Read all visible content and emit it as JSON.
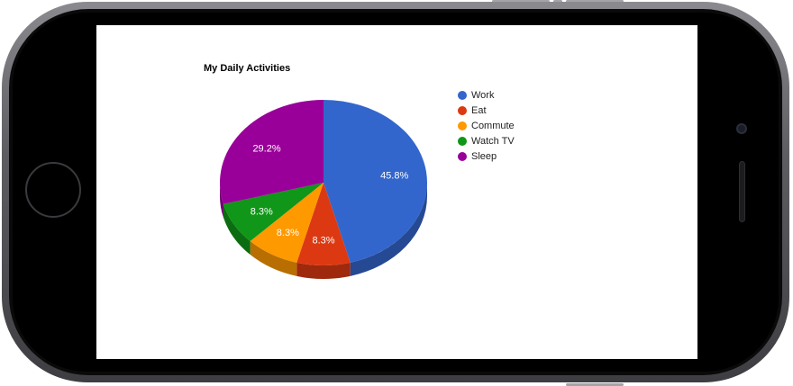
{
  "chart_data": {
    "type": "pie",
    "style": "3d",
    "title": "My Daily Activities",
    "legend_position": "right",
    "slices": [
      {
        "label": "Work",
        "value": 11,
        "percent_label": "45.8%",
        "color": "#3366cc"
      },
      {
        "label": "Eat",
        "value": 2,
        "percent_label": "8.3%",
        "color": "#dc3912"
      },
      {
        "label": "Commute",
        "value": 2,
        "percent_label": "8.3%",
        "color": "#ff9900"
      },
      {
        "label": "Watch TV",
        "value": 2,
        "percent_label": "8.3%",
        "color": "#109618"
      },
      {
        "label": "Sleep",
        "value": 7,
        "percent_label": "29.2%",
        "color": "#990099"
      }
    ]
  }
}
